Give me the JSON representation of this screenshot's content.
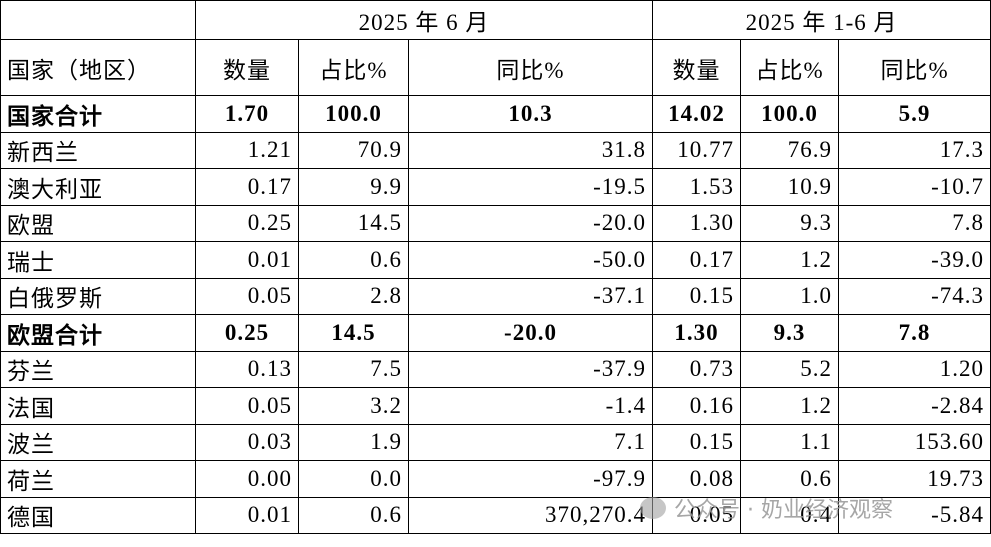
{
  "header": {
    "groups": [
      "2025 年 6 月",
      "2025 年 1-6 月"
    ],
    "columns": [
      "国家（地区）",
      "数量",
      "占比%",
      "同比%",
      "数量",
      "占比%",
      "同比%"
    ]
  },
  "table": {
    "rows": [
      [
        "国家合计",
        "1.70",
        "100.0",
        "10.3",
        "14.02",
        "100.0",
        "5.9"
      ],
      [
        "新西兰",
        "1.21",
        "70.9",
        "31.8",
        "10.77",
        "76.9",
        "17.3"
      ],
      [
        "澳大利亚",
        "0.17",
        "9.9",
        "-19.5",
        "1.53",
        "10.9",
        "-10.7"
      ],
      [
        "欧盟",
        "0.25",
        "14.5",
        "-20.0",
        "1.30",
        "9.3",
        "7.8"
      ],
      [
        "瑞士",
        "0.01",
        "0.6",
        "-50.0",
        "0.17",
        "1.2",
        "-39.0"
      ],
      [
        "白俄罗斯",
        "0.05",
        "2.8",
        "-37.1",
        "0.15",
        "1.0",
        "-74.3"
      ],
      [
        "欧盟合计",
        "0.25",
        "14.5",
        "-20.0",
        "1.30",
        "9.3",
        "7.8"
      ],
      [
        "芬兰",
        "0.13",
        "7.5",
        "-37.9",
        "0.73",
        "5.2",
        "1.20"
      ],
      [
        "法国",
        "0.05",
        "3.2",
        "-1.4",
        "0.16",
        "1.2",
        "-2.84"
      ],
      [
        "波兰",
        "0.03",
        "1.9",
        "7.1",
        "0.15",
        "1.1",
        "153.60"
      ],
      [
        "荷兰",
        "0.00",
        "0.0",
        "-97.9",
        "0.08",
        "0.6",
        "19.73"
      ],
      [
        "德国",
        "0.01",
        "0.6",
        "370,270.4",
        "0.05",
        "0.4",
        "-5.84"
      ]
    ]
  },
  "watermark": "公众号 · 奶业经济观察"
}
